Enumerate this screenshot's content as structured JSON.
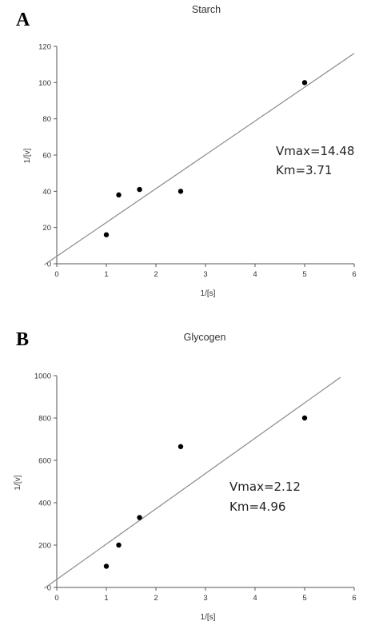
{
  "chart_data": [
    {
      "type": "scatter",
      "panel_label": "A",
      "title": "Starch",
      "xlabel": "1/[s]",
      "ylabel": "1/[v]",
      "xlim": [
        0,
        6
      ],
      "ylim": [
        0,
        120
      ],
      "x_ticks": [
        "0",
        "1",
        "2",
        "3",
        "4",
        "5",
        "6"
      ],
      "y_ticks": [
        "0",
        "20",
        "40",
        "60",
        "80",
        "100",
        "120"
      ],
      "series": [
        {
          "x": [
            1.0,
            1.25,
            1.67,
            2.5,
            5.0
          ],
          "y": [
            16,
            38,
            41,
            40,
            100
          ]
        }
      ],
      "trendline": {
        "slope": 18.67,
        "intercept": 4.1,
        "x_range": [
          -0.25,
          6.0
        ]
      },
      "annotations": [
        "Vmax=14.48",
        "Km=3.71"
      ],
      "grid": false,
      "legend": "none"
    },
    {
      "type": "scatter",
      "panel_label": "B",
      "title": "Glycogen",
      "xlabel": "1/[s]",
      "ylabel": "1/[v]",
      "xlim": [
        0,
        6
      ],
      "ylim": [
        0,
        1000
      ],
      "x_ticks": [
        "0",
        "1",
        "2",
        "3",
        "4",
        "5",
        "6"
      ],
      "y_ticks": [
        "0",
        "200",
        "400",
        "600",
        "800",
        "1000"
      ],
      "series": [
        {
          "x": [
            1.0,
            1.25,
            1.67,
            2.5,
            5.0
          ],
          "y": [
            100,
            200,
            330,
            665,
            800
          ]
        }
      ],
      "trendline": {
        "slope": 166.7,
        "intercept": 38.0,
        "x_range": [
          -0.25,
          5.72
        ]
      },
      "annotations": [
        "Vmax=2.12",
        "Km=4.96"
      ],
      "grid": false,
      "legend": "none"
    }
  ]
}
